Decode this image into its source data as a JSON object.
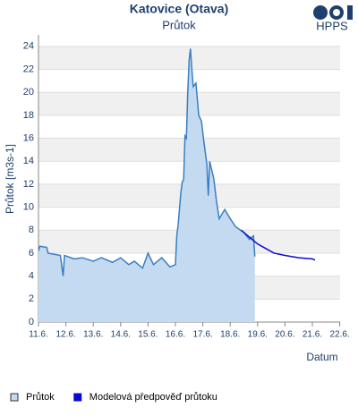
{
  "chart_data": {
    "type": "line",
    "title": "Katovice (Otava)",
    "subtitle": "Průtok",
    "logo": "HPPS",
    "y_label": "Průtok [m3s-1]",
    "x_label": "Datum",
    "ylim": [
      0,
      25
    ],
    "yticks": [
      0,
      2,
      4,
      6,
      8,
      10,
      12,
      14,
      16,
      18,
      20,
      22,
      24
    ],
    "xlim": [
      11,
      22.2
    ],
    "xticks": [
      {
        "value": 11,
        "label": "11.6."
      },
      {
        "value": 12,
        "label": "12.6."
      },
      {
        "value": 13,
        "label": "13.6."
      },
      {
        "value": 14,
        "label": "14.6."
      },
      {
        "value": 15,
        "label": "15.6."
      },
      {
        "value": 16,
        "label": "16.6."
      },
      {
        "value": 17,
        "label": "17.6."
      },
      {
        "value": 18,
        "label": "18.6."
      },
      {
        "value": 19,
        "label": "19.6."
      },
      {
        "value": 20,
        "label": "20.6."
      },
      {
        "value": 21,
        "label": "21.6."
      },
      {
        "value": 22,
        "label": "22.6."
      }
    ],
    "grid": "bands",
    "series": [
      {
        "name": "Průtok",
        "color": "#3a7fc1",
        "fill": "#c4daf0",
        "area": true,
        "x": [
          11.0,
          11.05,
          11.3,
          11.35,
          11.8,
          11.9,
          11.95,
          12.3,
          12.6,
          13.0,
          13.3,
          13.7,
          14.0,
          14.3,
          14.5,
          14.8,
          15.0,
          15.2,
          15.5,
          15.8,
          16.0,
          16.05,
          16.1,
          16.2,
          16.25,
          16.3,
          16.35,
          16.4,
          16.45,
          16.5,
          16.55,
          16.6,
          16.65,
          16.75,
          16.85,
          16.95,
          17.05,
          17.15,
          17.2,
          17.25,
          17.4,
          17.5,
          17.6,
          17.8,
          18.0,
          18.2,
          18.5,
          18.7,
          18.85,
          18.9
        ],
        "values": [
          6.2,
          6.6,
          6.5,
          6.0,
          5.8,
          4.0,
          5.8,
          5.5,
          5.6,
          5.3,
          5.6,
          5.2,
          5.6,
          5.0,
          5.3,
          4.7,
          6.0,
          5.0,
          5.6,
          4.8,
          5.0,
          7.5,
          8.5,
          11.3,
          12.2,
          12.4,
          16.2,
          16.0,
          20.0,
          22.8,
          23.8,
          22.0,
          20.5,
          20.8,
          18.0,
          17.5,
          15.5,
          13.7,
          11.0,
          14.0,
          12.5,
          10.5,
          9.0,
          9.8,
          9.0,
          8.3,
          7.8,
          7.2,
          7.5,
          5.7
        ]
      },
      {
        "name": "Modelová předpověď průtoku",
        "color": "#0a0ad0",
        "area": false,
        "x": [
          18.4,
          18.6,
          18.8,
          19.0,
          19.3,
          19.6,
          20.0,
          20.5,
          21.0,
          21.1
        ],
        "values": [
          8.0,
          7.6,
          7.2,
          6.8,
          6.4,
          6.0,
          5.8,
          5.6,
          5.5,
          5.4
        ]
      }
    ]
  }
}
